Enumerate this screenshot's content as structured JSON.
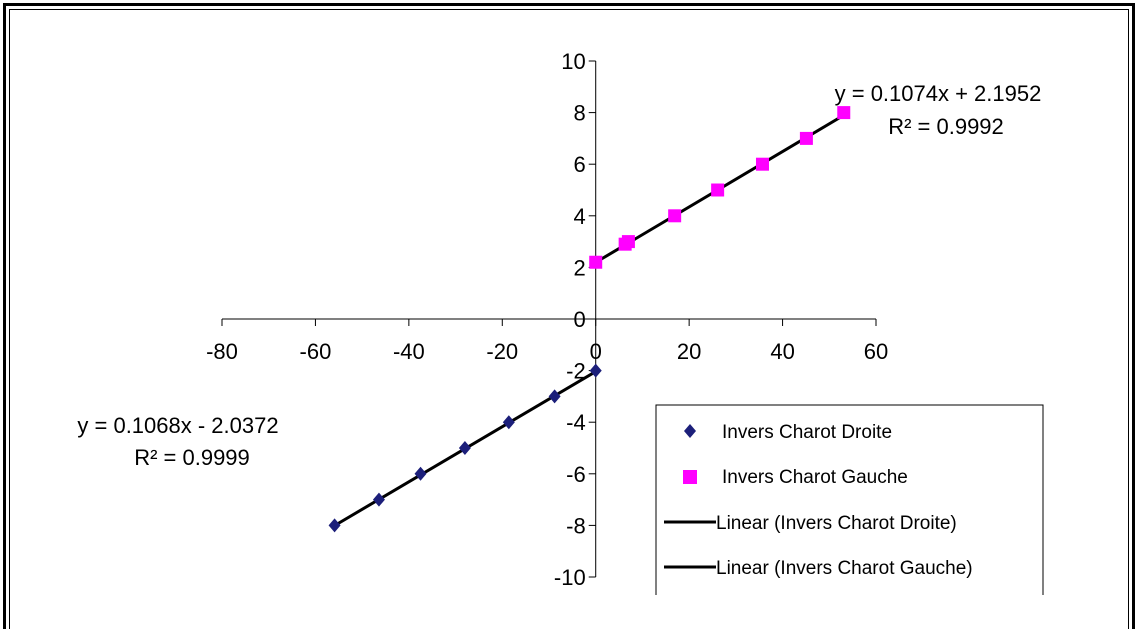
{
  "chart_data": {
    "type": "scatter",
    "xlim": [
      -80,
      60
    ],
    "ylim": [
      -10,
      10
    ],
    "x_ticks": [
      "-80",
      "-60",
      "-40",
      "-20",
      "0",
      "20",
      "40",
      "60"
    ],
    "y_ticks": [
      "10",
      "8",
      "6",
      "4",
      "2",
      "0",
      "-2",
      "-4",
      "-6",
      "-8",
      "-10"
    ],
    "grid": false,
    "legend_position": "bottom-right",
    "series": [
      {
        "name": "Invers Charot Droite",
        "marker": "diamond",
        "color": "#1c1f7a",
        "x": [
          -55.9,
          -46.4,
          -37.5,
          -28.0,
          -18.6,
          -8.8,
          0.0
        ],
        "y": [
          -8,
          -7,
          -6,
          -5,
          -4,
          -3,
          -2
        ]
      },
      {
        "name": "Invers Charot Gauche",
        "marker": "square",
        "color": "#ff00ff",
        "x": [
          0.0,
          6.3,
          7.0,
          16.9,
          26.1,
          35.7,
          45.1,
          53.1
        ],
        "y": [
          2.2,
          2.9,
          3.0,
          4,
          5,
          6,
          7,
          8
        ]
      }
    ],
    "trendlines": [
      {
        "name": "Linear (Invers Charot Droite)",
        "slope": 0.1068,
        "intercept": -2.0372,
        "x_range": [
          -56,
          0
        ],
        "color": "#000000",
        "equation": "y = 0.1068x - 2.0372",
        "r2": "R² = 0.9999"
      },
      {
        "name": "Linear (Invers Charot Gauche)",
        "slope": 0.1074,
        "intercept": 2.1952,
        "x_range": [
          0,
          53
        ],
        "color": "#000000",
        "equation": "y = 0.1074x + 2.1952",
        "r2": "R² = 0.9992"
      }
    ]
  }
}
